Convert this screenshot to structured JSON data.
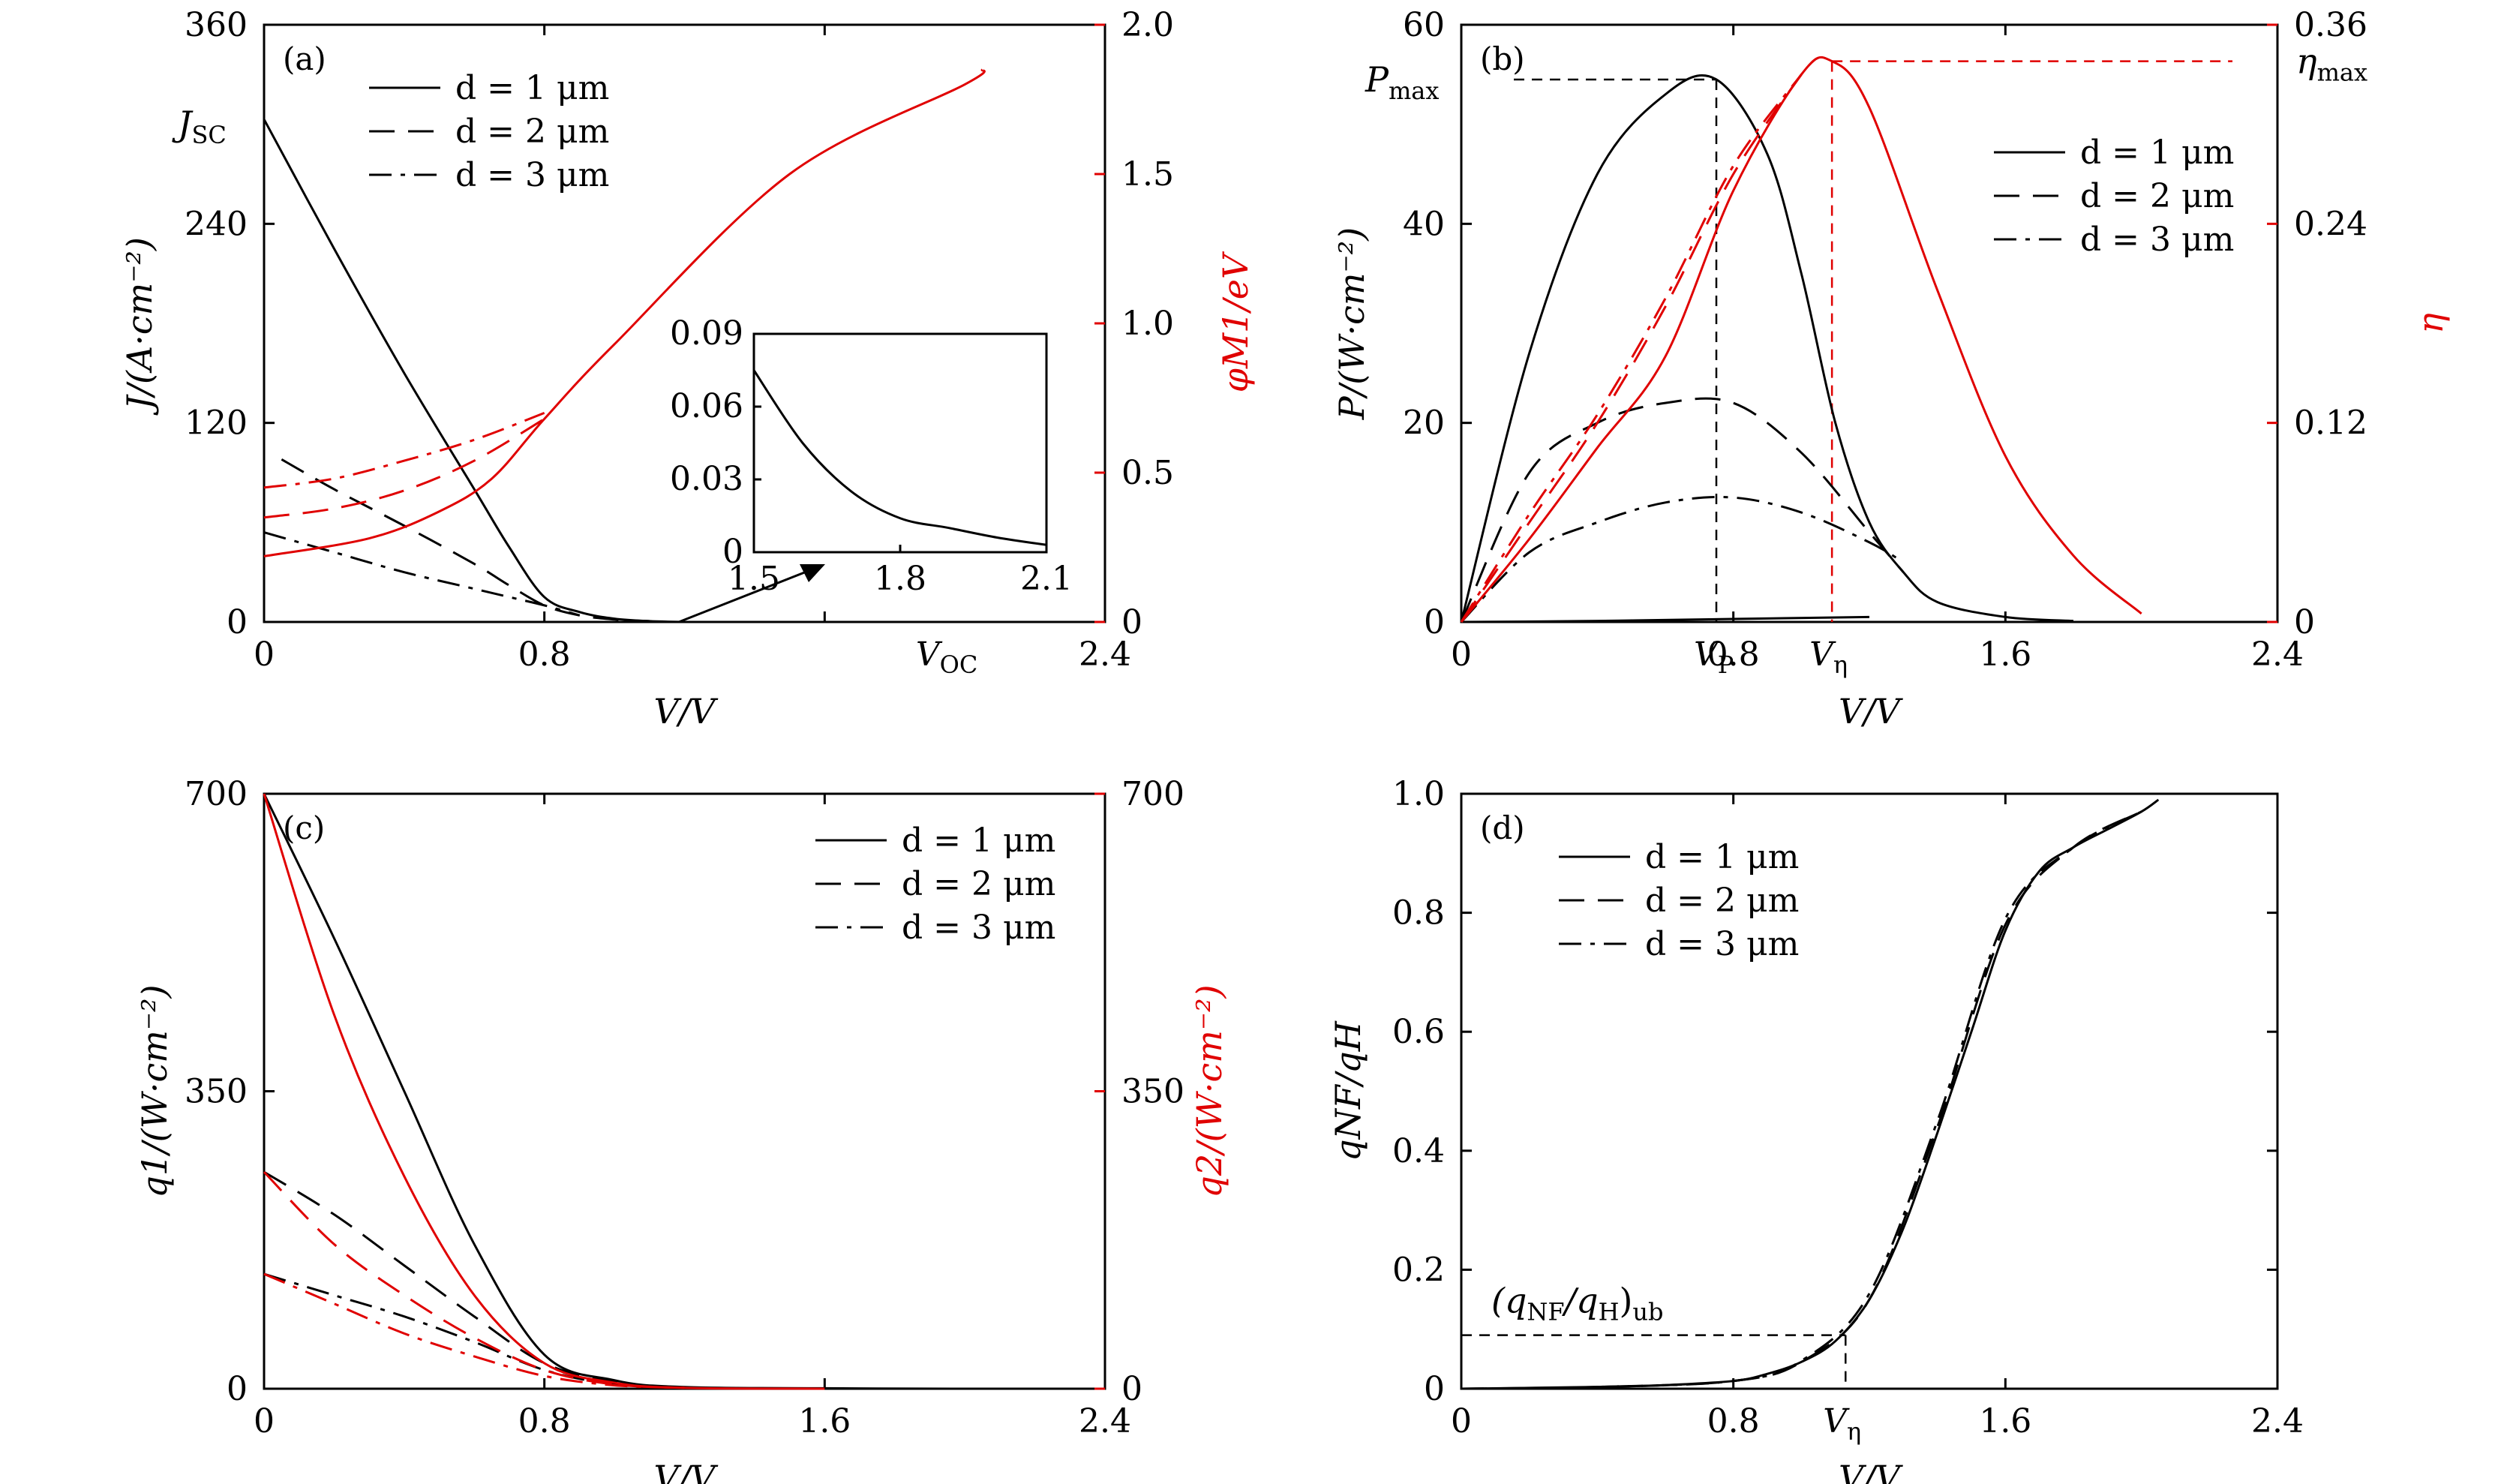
{
  "chart_data": [
    {
      "panel": "(a)",
      "type": "line",
      "xlabel": "V/V",
      "ylabel": "J/(A·cm⁻²)",
      "y2label": "φM1/eV",
      "xlim": [
        0,
        2.4
      ],
      "ylim": [
        0,
        360
      ],
      "y2lim": [
        0,
        2.0
      ],
      "xticks": [
        "0",
        "0.8",
        "1.6",
        "2.4"
      ],
      "yticks": [
        "0",
        "120",
        "240",
        "360"
      ],
      "y2ticks": [
        "0",
        "0.5",
        "1.0",
        "1.5",
        "2.0"
      ],
      "legend": [
        "d = 1 μm",
        "d = 2 μm",
        "d = 3 μm"
      ],
      "annotations": {
        "jsc": "J",
        "jsc_sub": "SC",
        "voc": "V",
        "voc_sub": "OC"
      },
      "series": [
        {
          "axis": "left",
          "color": "#000000",
          "style": "solid",
          "x": [
            0,
            0.2,
            0.4,
            0.6,
            0.7,
            0.8,
            0.9,
            1.0,
            1.1,
            1.2
          ],
          "y": [
            303,
            225,
            150,
            80,
            45,
            15,
            6,
            2,
            0.5,
            0
          ]
        },
        {
          "axis": "left",
          "color": "#000000",
          "style": "dash",
          "x": [
            0.05,
            0.2,
            0.4,
            0.6,
            0.7,
            0.8,
            0.9,
            1.0,
            1.1
          ],
          "y": [
            98,
            80,
            58,
            35,
            22,
            10,
            4,
            1.5,
            0.5
          ]
        },
        {
          "axis": "left",
          "color": "#000000",
          "style": "dashdot",
          "x": [
            0,
            0.2,
            0.4,
            0.6,
            0.7,
            0.8,
            0.9
          ],
          "y": [
            54,
            42,
            30,
            20,
            15,
            10,
            4
          ]
        },
        {
          "axis": "right",
          "color": "#e00000",
          "style": "solid",
          "x": [
            0,
            0.3,
            0.5,
            0.65,
            0.8,
            1.0,
            1.5,
            2.0,
            2.05
          ],
          "y": [
            0.22,
            0.28,
            0.37,
            0.48,
            0.68,
            0.93,
            1.5,
            1.8,
            1.85
          ]
        },
        {
          "axis": "right",
          "color": "#e00000",
          "style": "dash",
          "x": [
            0,
            0.2,
            0.4,
            0.6,
            0.8
          ],
          "y": [
            0.35,
            0.38,
            0.44,
            0.54,
            0.68
          ]
        },
        {
          "axis": "right",
          "color": "#e00000",
          "style": "dashdot",
          "x": [
            0,
            0.2,
            0.4,
            0.6,
            0.8
          ],
          "y": [
            0.45,
            0.48,
            0.54,
            0.61,
            0.7
          ]
        }
      ],
      "inset": {
        "xlim": [
          1.5,
          2.1
        ],
        "ylim": [
          0,
          0.09
        ],
        "xticks": [
          "1.5",
          "1.8",
          "2.1"
        ],
        "yticks": [
          "0",
          "0.03",
          "0.06",
          "0.09"
        ],
        "series": [
          {
            "x": [
              1.5,
              1.6,
              1.7,
              1.8,
              1.9,
              2.0,
              2.1
            ],
            "y": [
              0.075,
              0.045,
              0.025,
              0.014,
              0.01,
              0.006,
              0.003
            ]
          }
        ]
      }
    },
    {
      "panel": "(b)",
      "type": "line",
      "xlabel": "V/V",
      "ylabel": "P/(W·cm⁻²)",
      "y2label": "η",
      "xlim": [
        0,
        2.4
      ],
      "ylim": [
        0,
        60
      ],
      "y2lim": [
        0,
        0.36
      ],
      "xticks": [
        "0",
        "V",
        "0.8",
        "V",
        "1.6",
        "2.4"
      ],
      "yticks": [
        "0",
        "20",
        "40",
        "60"
      ],
      "y2ticks": [
        "0",
        "0.12",
        "0.24",
        "0.36"
      ],
      "legend": [
        "d = 1 μm",
        "d = 2 μm",
        "d = 3 μm"
      ],
      "annotations": {
        "pmax": "P",
        "pmax_sub": "max",
        "etamax": "η",
        "etamax_sub": "max",
        "vp": "V",
        "vp_sub": "P",
        "veta": "V",
        "veta_sub": "η"
      },
      "markers": {
        "vp": 0.75,
        "pmax": 54.5,
        "veta": 1.09,
        "etamax": 0.338
      },
      "series": [
        {
          "axis": "left",
          "color": "#000000",
          "style": "solid",
          "x": [
            0,
            0.2,
            0.4,
            0.6,
            0.75,
            0.9,
            1.0,
            1.1,
            1.2,
            1.3,
            1.4,
            1.6,
            1.8
          ],
          "y": [
            0,
            27,
            45,
            53,
            54.5,
            47,
            35,
            20,
            10,
            5,
            2,
            0.5,
            0.1
          ]
        },
        {
          "axis": "left",
          "color": "#000000",
          "style": "dash",
          "x": [
            0,
            0.2,
            0.4,
            0.6,
            0.8,
            1.0,
            1.2,
            1.3
          ],
          "y": [
            0,
            15,
            20,
            22,
            22,
            17,
            9,
            5
          ]
        },
        {
          "axis": "left",
          "color": "#000000",
          "style": "dashdot",
          "x": [
            0,
            0.2,
            0.4,
            0.6,
            0.8,
            1.0,
            1.2,
            1.3
          ],
          "y": [
            0,
            7,
            10,
            12,
            12.5,
            11,
            8,
            6
          ]
        },
        {
          "axis": "left",
          "color": "#000000",
          "style": "solid",
          "x": [
            0,
            0.4,
            0.8,
            1.2
          ],
          "y": [
            0,
            0.1,
            0.3,
            0.5
          ]
        },
        {
          "axis": "right",
          "color": "#e00000",
          "style": "solid",
          "x": [
            0,
            0.2,
            0.4,
            0.6,
            0.8,
            1.0,
            1.09,
            1.2,
            1.4,
            1.6,
            1.8,
            2.0
          ],
          "y": [
            0,
            0.05,
            0.105,
            0.16,
            0.26,
            0.33,
            0.338,
            0.31,
            0.2,
            0.1,
            0.04,
            0.005
          ]
        },
        {
          "axis": "right",
          "color": "#e00000",
          "style": "dash",
          "x": [
            0,
            0.2,
            0.4,
            0.6,
            0.8,
            1.0
          ],
          "y": [
            0,
            0.06,
            0.12,
            0.19,
            0.27,
            0.33
          ]
        },
        {
          "axis": "right",
          "color": "#e00000",
          "style": "dashdot",
          "x": [
            0,
            0.2,
            0.4,
            0.6,
            0.8,
            1.0
          ],
          "y": [
            0,
            0.065,
            0.125,
            0.195,
            0.275,
            0.33
          ]
        }
      ]
    },
    {
      "panel": "(c)",
      "type": "line",
      "xlabel": "V/V",
      "ylabel": "q1/(W·cm⁻²)",
      "y2label": "q2/(W·cm⁻²)",
      "xlim": [
        0,
        2.4
      ],
      "ylim": [
        0,
        700
      ],
      "y2lim": [
        0,
        700
      ],
      "xticks": [
        "0",
        "0.8",
        "1.6",
        "2.4"
      ],
      "yticks": [
        "0",
        "350",
        "700"
      ],
      "y2ticks": [
        "0",
        "350",
        "700"
      ],
      "legend": [
        "d = 1 μm",
        "d = 2 μm",
        "d = 3 μm"
      ],
      "series": [
        {
          "axis": "left",
          "color": "#000000",
          "style": "solid",
          "x": [
            0,
            0.2,
            0.4,
            0.6,
            0.8,
            1.0,
            1.2,
            1.6,
            2.0
          ],
          "y": [
            700,
            530,
            350,
            170,
            40,
            10,
            2,
            0.5,
            0
          ]
        },
        {
          "axis": "left",
          "color": "#000000",
          "style": "dash",
          "x": [
            0,
            0.2,
            0.4,
            0.6,
            0.8,
            1.0,
            1.2
          ],
          "y": [
            255,
            205,
            145,
            85,
            30,
            8,
            1
          ]
        },
        {
          "axis": "left",
          "color": "#000000",
          "style": "dashdot",
          "x": [
            0,
            0.2,
            0.4,
            0.6,
            0.8,
            1.0,
            1.2
          ],
          "y": [
            135,
            110,
            85,
            55,
            22,
            5,
            1
          ]
        },
        {
          "axis": "right",
          "color": "#e00000",
          "style": "solid",
          "x": [
            0,
            0.2,
            0.4,
            0.6,
            0.8,
            1.0,
            1.2,
            1.6
          ],
          "y": [
            700,
            440,
            250,
            110,
            30,
            7,
            1,
            0
          ]
        },
        {
          "axis": "right",
          "color": "#e00000",
          "style": "dash",
          "x": [
            0,
            0.2,
            0.4,
            0.6,
            0.8,
            1.0,
            1.2
          ],
          "y": [
            255,
            170,
            110,
            60,
            22,
            5,
            1
          ]
        },
        {
          "axis": "right",
          "color": "#e00000",
          "style": "dashdot",
          "x": [
            0,
            0.2,
            0.4,
            0.6,
            0.8,
            1.0,
            1.2
          ],
          "y": [
            135,
            100,
            65,
            38,
            15,
            4,
            1
          ]
        }
      ]
    },
    {
      "panel": "(d)",
      "type": "line",
      "xlabel": "V/V",
      "ylabel": "qNF/qH",
      "xlim": [
        0,
        2.4
      ],
      "ylim": [
        0,
        1.0
      ],
      "xticks": [
        "0",
        "0.8",
        "V",
        "1.6",
        "2.4"
      ],
      "yticks": [
        "0",
        "0.2",
        "0.4",
        "0.6",
        "0.8",
        "1.0"
      ],
      "legend": [
        "d = 1 μm",
        "d = 2 μm",
        "d = 3 μm"
      ],
      "annotations": {
        "ub": "(q",
        "ub_mid": "/q",
        "ub_end": ")",
        "ub_sub1": "NF",
        "ub_sub2": "H",
        "ub_sub3": "ub",
        "veta": "V",
        "veta_sub": "η"
      },
      "markers": {
        "veta": 1.13,
        "ub": 0.09
      },
      "series": [
        {
          "color": "#000000",
          "style": "solid",
          "x": [
            0,
            0.4,
            0.6,
            0.8,
            0.9,
            1.0,
            1.1,
            1.2,
            1.3,
            1.4,
            1.5,
            1.6,
            1.7,
            1.8,
            1.9,
            2.0,
            2.05
          ],
          "y": [
            0,
            0.003,
            0.006,
            0.013,
            0.025,
            0.045,
            0.08,
            0.15,
            0.27,
            0.43,
            0.6,
            0.77,
            0.87,
            0.91,
            0.94,
            0.97,
            0.99
          ]
        },
        {
          "color": "#000000",
          "style": "dash",
          "x": [
            0,
            0.4,
            0.8,
            1.0,
            1.2,
            1.4,
            1.6,
            1.8,
            2.0
          ],
          "y": [
            0,
            0.003,
            0.013,
            0.045,
            0.15,
            0.44,
            0.78,
            0.91,
            0.97
          ]
        },
        {
          "color": "#000000",
          "style": "dashdot",
          "x": [
            0,
            0.4,
            0.8,
            1.0,
            1.2,
            1.4,
            1.6,
            1.8,
            2.0
          ],
          "y": [
            0,
            0.003,
            0.013,
            0.047,
            0.16,
            0.45,
            0.79,
            0.91,
            0.97
          ]
        }
      ]
    }
  ]
}
